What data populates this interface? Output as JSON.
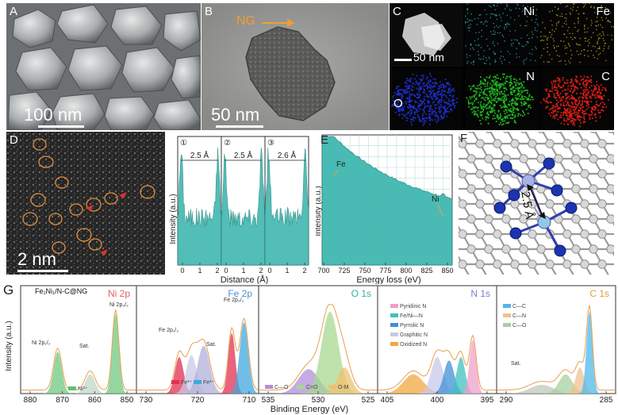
{
  "panel_a": {
    "label": "A",
    "scale": "100 nm"
  },
  "panel_b": {
    "label": "B",
    "scale": "50 nm",
    "annotation": "NG"
  },
  "panel_c": {
    "label": "C",
    "scale": "50 nm",
    "maps": [
      {
        "element": "Ni",
        "color": "#35c0c8"
      },
      {
        "element": "Fe",
        "color": "#d8c020"
      },
      {
        "element": "O",
        "color": "#2030d0"
      },
      {
        "element": "N",
        "color": "#20c020"
      },
      {
        "element": "C",
        "color": "#e02018"
      }
    ]
  },
  "panel_d": {
    "label": "D",
    "scale": "2 nm"
  },
  "panel_profiles": {
    "ylabel": "Intensity (a.u.)",
    "xlabel": "Distance (Å)",
    "fill_color": "#40b8b0",
    "segments": [
      {
        "marker": "①",
        "spacing": "2.5 Å",
        "ticks": [
          "0",
          "1",
          "2"
        ]
      },
      {
        "marker": "②",
        "spacing": "2.5 Å",
        "ticks": [
          "0",
          "1",
          "2"
        ]
      },
      {
        "marker": "③",
        "spacing": "2.6 Å",
        "ticks": [
          "0",
          "1",
          "2"
        ]
      }
    ]
  },
  "panel_e": {
    "label": "E",
    "ylabel": "Intensity (a.u.)",
    "xlabel": "Energy loss (eV)",
    "ticks": [
      "700",
      "725",
      "750",
      "775",
      "800",
      "825",
      "850"
    ],
    "peaks": [
      "Fe",
      "Ni"
    ]
  },
  "panel_f": {
    "label": "F",
    "distance": "2.5 Å"
  },
  "panel_g": {
    "label": "G",
    "sample": "Fe₁Ni₁/N-C@NG",
    "ylabel": "Intensity (a.u.)",
    "xlabel": "Binding Energy (eV)",
    "subpanels": [
      {
        "title": "Ni 2p",
        "title_color": "#e06060",
        "ticks": [
          "880",
          "870",
          "860",
          "850"
        ],
        "annotations": [
          "Ni 2p₁/₂",
          "Ni 2p₃/₂",
          "Sat."
        ],
        "legend": [
          {
            "label": "Ni²⁺",
            "color": "#60c070"
          }
        ]
      },
      {
        "title": "Fe 2p",
        "title_color": "#4a90d0",
        "ticks": [
          "730",
          "720",
          "710"
        ],
        "annotations": [
          "Fe 2p₁/₂",
          "Fe 2p₃/₂",
          "Sat."
        ],
        "legend": [
          {
            "label": "Fe³⁺",
            "color": "#e03050"
          },
          {
            "label": "Fe²⁺",
            "color": "#40a8e0"
          }
        ]
      },
      {
        "title": "O 1s",
        "title_color": "#30b0a0",
        "ticks": [
          "535",
          "530",
          "525"
        ],
        "legend": [
          {
            "label": "C—O",
            "color": "#b090d8"
          },
          {
            "label": "C=O",
            "color": "#a8d890"
          },
          {
            "label": "O-M",
            "color": "#f0c070"
          }
        ]
      },
      {
        "title": "N 1s",
        "title_color": "#7080d8",
        "ticks": [
          "405",
          "400",
          "395"
        ],
        "legend": [
          {
            "label": "Pyridinic N",
            "color": "#f0a0c8"
          },
          {
            "label": "Fe/Ni—N",
            "color": "#40c0c0"
          },
          {
            "label": "Pyrrolic N",
            "color": "#4090d8"
          },
          {
            "label": "Graphitic N",
            "color": "#c8c8e8"
          },
          {
            "label": "Oxidized N",
            "color": "#f0a840"
          }
        ]
      },
      {
        "title": "C 1s",
        "title_color": "#e0a030",
        "ticks": [
          "290",
          "285"
        ],
        "annotations": [
          "Sat."
        ],
        "legend": [
          {
            "label": "C—C",
            "color": "#50b8e8"
          },
          {
            "label": "C—N",
            "color": "#f0c090"
          },
          {
            "label": "C—O",
            "color": "#a8d0a0"
          }
        ]
      }
    ]
  }
}
